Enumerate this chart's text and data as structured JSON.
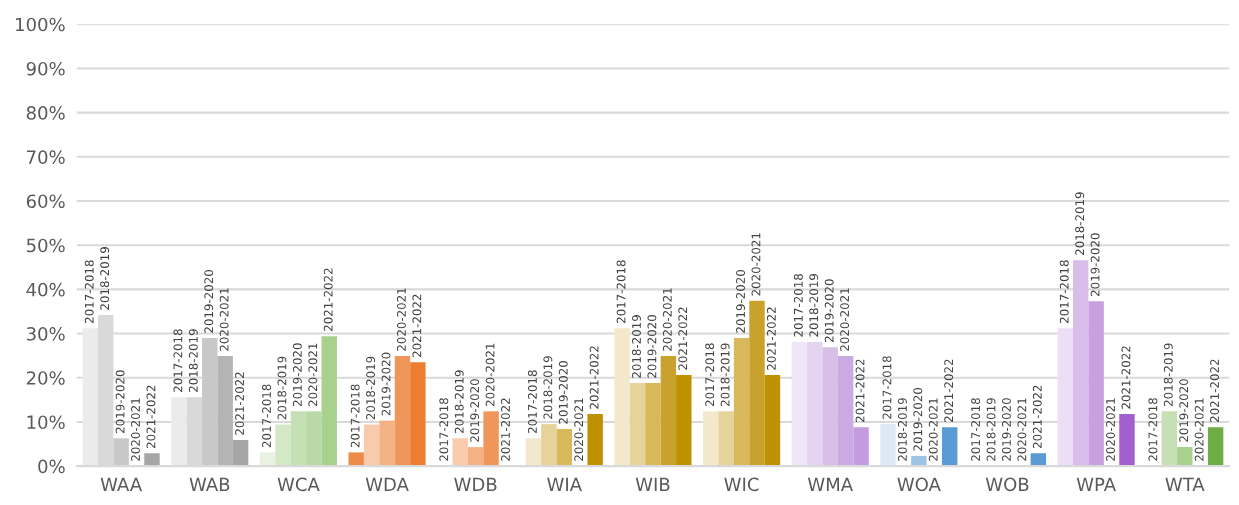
{
  "chart_data": {
    "type": "bar",
    "categories": [
      "WAA",
      "WAB",
      "WCA",
      "WDA",
      "WDB",
      "WIA",
      "WIB",
      "WIC",
      "WMA",
      "WOA",
      "WOB",
      "WPA",
      "WTA"
    ],
    "ylim": [
      0,
      100
    ],
    "yticks": [
      {
        "value": 0,
        "label": "0%"
      },
      {
        "value": 10,
        "label": "10%"
      },
      {
        "value": 20,
        "label": "20%"
      },
      {
        "value": 30,
        "label": "30%"
      },
      {
        "value": 40,
        "label": "40%"
      },
      {
        "value": 50,
        "label": "50%"
      },
      {
        "value": 60,
        "label": "60%"
      },
      {
        "value": 70,
        "label": "70%"
      },
      {
        "value": 80,
        "label": "80%"
      },
      {
        "value": 90,
        "label": "90%"
      },
      {
        "value": 100,
        "label": "100%"
      }
    ],
    "grid": "y",
    "legend": false,
    "series": [
      {
        "name": "2017-2018",
        "values": [
          31.2,
          15.6,
          3.1,
          3.1,
          0,
          6.3,
          31.2,
          12.4,
          28.1,
          9.5,
          0,
          31.2,
          0
        ],
        "colors": [
          "#ebebeb",
          "#ebebeb",
          "#e9f2e1",
          "#ed8b4a",
          "#f8cbad",
          "#f2e9cc",
          "#f2e9cc",
          "#f2e9cc",
          "#efe6f7",
          "#dde9f5",
          "#dde9f5",
          "#ecdff5",
          "#e2efd9"
        ]
      },
      {
        "name": "2018-2019",
        "values": [
          34.2,
          15.6,
          9.4,
          9.4,
          6.3,
          9.5,
          18.8,
          12.4,
          28.1,
          0,
          0,
          46.6,
          12.4
        ],
        "colors": [
          "#d9d9d9",
          "#d9d9d9",
          "#d4e8c6",
          "#f8cbad",
          "#f8cbad",
          "#e5d39a",
          "#e5d39a",
          "#e5d39a",
          "#e4d4f0",
          "#bdd7ee",
          "#bdd7ee",
          "#d9bdeb",
          "#c5e0b4"
        ]
      },
      {
        "name": "2019-2020",
        "values": [
          6.3,
          29.0,
          12.4,
          10.3,
          4.3,
          8.4,
          18.8,
          29.0,
          26.9,
          2.3,
          0,
          37.3,
          4.3
        ],
        "colors": [
          "#c8c8c8",
          "#c8c8c8",
          "#c5e0b4",
          "#f4b183",
          "#f4b183",
          "#d7b95b",
          "#d7b95b",
          "#d7b95b",
          "#d8bfe8",
          "#9dc3e6",
          "#9dc3e6",
          "#c8a0e0",
          "#a9d18e"
        ]
      },
      {
        "name": "2020-2021",
        "values": [
          0,
          24.9,
          12.4,
          24.9,
          12.4,
          0,
          24.9,
          37.4,
          24.9,
          0,
          0,
          0,
          0
        ],
        "colors": [
          "#b4b4b4",
          "#b4b4b4",
          "#b9daa6",
          "#f0965a",
          "#f0965a",
          "#c9a22e",
          "#c9a22e",
          "#c9a22e",
          "#cba9e2",
          "#7cafdd",
          "#7cafdd",
          "#b47fd8",
          "#8cc16a"
        ]
      },
      {
        "name": "2021-2022",
        "values": [
          2.9,
          5.9,
          29.4,
          23.5,
          0,
          11.8,
          20.6,
          20.6,
          8.8,
          8.8,
          2.9,
          11.8,
          8.8
        ],
        "colors": [
          "#a6a6a6",
          "#a6a6a6",
          "#a9d18e",
          "#ed7d31",
          "#ed7d31",
          "#bf9000",
          "#bf9000",
          "#bf9000",
          "#c49be0",
          "#5b9bd5",
          "#5b9bd5",
          "#a15fcf",
          "#70ad47"
        ]
      }
    ]
  }
}
